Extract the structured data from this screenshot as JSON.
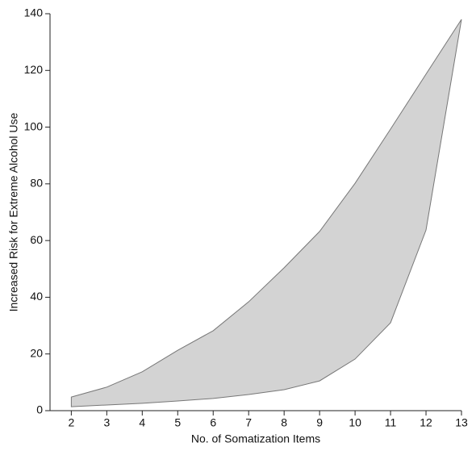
{
  "chart_data": {
    "type": "band",
    "x_label": "No. of Somatization Items",
    "y_label": "Increased Risk for Extreme Alcohol Use",
    "x": [
      2,
      3,
      4,
      5,
      6,
      7,
      8,
      9,
      10,
      11,
      12,
      13
    ],
    "upper": [
      4.8,
      8.3,
      13.7,
      21.3,
      28.2,
      38.4,
      50.4,
      63.2,
      80.2,
      99.3,
      118.7,
      138
    ],
    "lower": [
      1.4,
      2.0,
      2.6,
      3.4,
      4.3,
      5.7,
      7.4,
      10.5,
      18.2,
      31.0,
      63.7,
      138
    ],
    "color": "#d3d3d3",
    "xlim": [
      1.4,
      13
    ],
    "ylim": [
      0,
      140
    ],
    "xticks": [
      2,
      3,
      4,
      5,
      6,
      7,
      8,
      9,
      10,
      11,
      12,
      13
    ],
    "yticks": [
      0,
      20,
      40,
      60,
      80,
      100,
      120,
      140
    ],
    "grid": false
  }
}
